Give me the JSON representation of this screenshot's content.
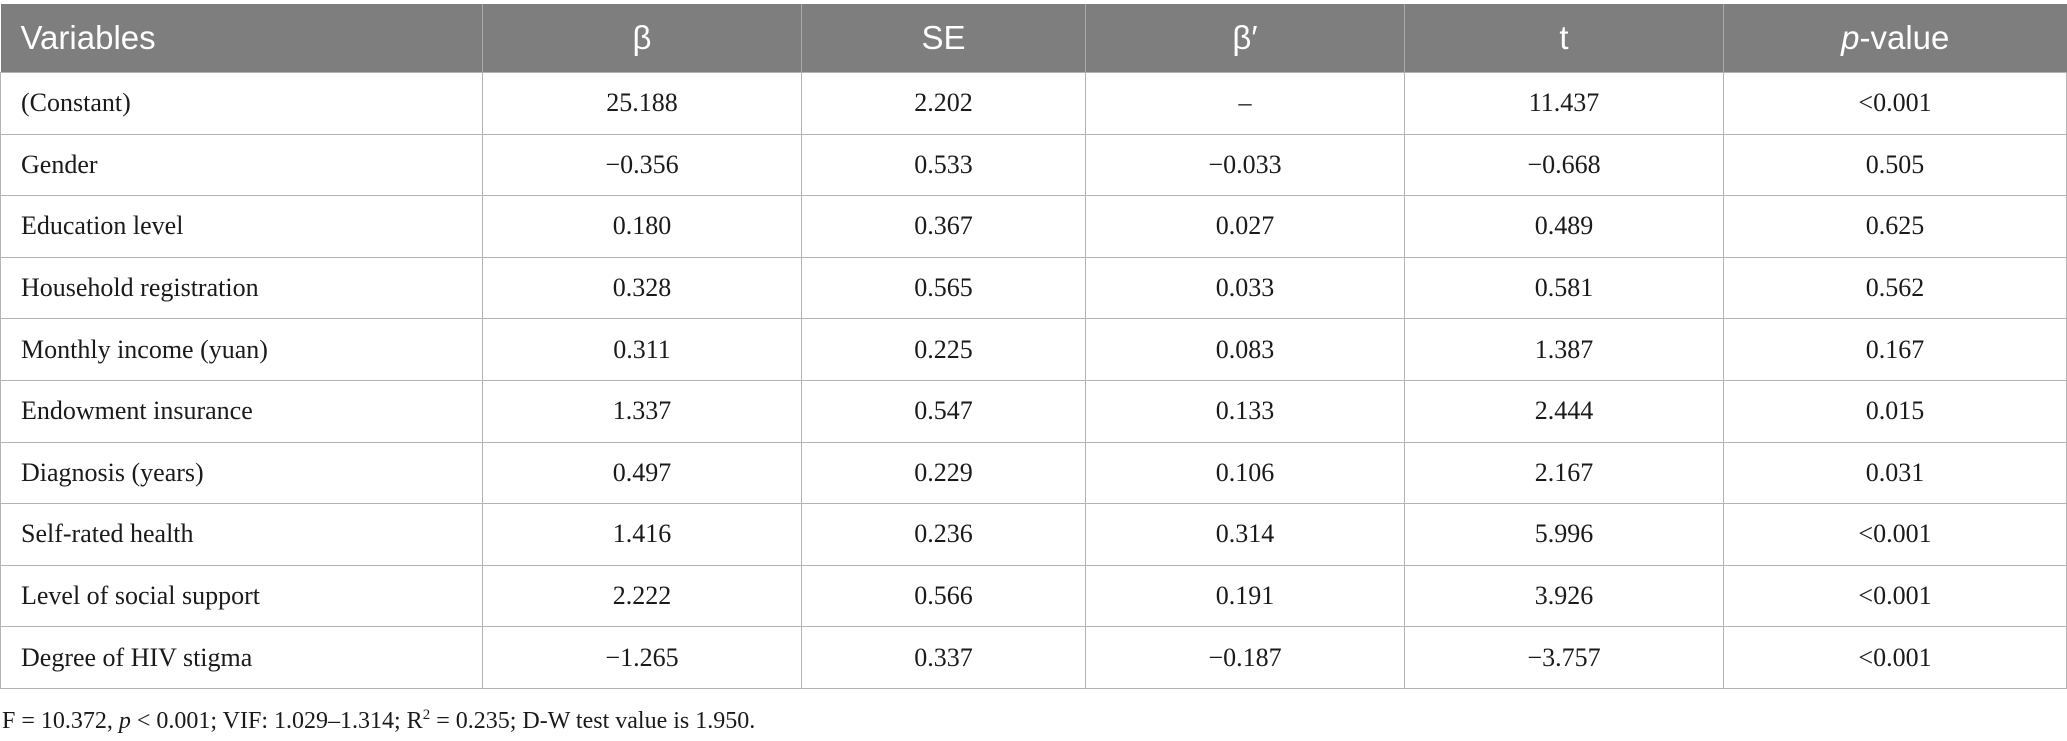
{
  "table": {
    "headers": {
      "variables": "Variables",
      "beta": "β",
      "se": "SE",
      "beta_std": "β′",
      "t": "t",
      "p_italic": "p",
      "p_rest": "-value"
    },
    "rows": [
      {
        "variable": "(Constant)",
        "beta": "25.188",
        "se": "2.202",
        "beta_std": "–",
        "t": "11.437",
        "p": "<0.001"
      },
      {
        "variable": "Gender",
        "beta": "−0.356",
        "se": "0.533",
        "beta_std": "−0.033",
        "t": "−0.668",
        "p": "0.505"
      },
      {
        "variable": "Education level",
        "beta": "0.180",
        "se": "0.367",
        "beta_std": "0.027",
        "t": "0.489",
        "p": "0.625"
      },
      {
        "variable": "Household registration",
        "beta": "0.328",
        "se": "0.565",
        "beta_std": "0.033",
        "t": "0.581",
        "p": "0.562"
      },
      {
        "variable": "Monthly income (yuan)",
        "beta": "0.311",
        "se": "0.225",
        "beta_std": "0.083",
        "t": "1.387",
        "p": "0.167"
      },
      {
        "variable": "Endowment insurance",
        "beta": "1.337",
        "se": "0.547",
        "beta_std": "0.133",
        "t": "2.444",
        "p": "0.015"
      },
      {
        "variable": "Diagnosis (years)",
        "beta": "0.497",
        "se": "0.229",
        "beta_std": "0.106",
        "t": "2.167",
        "p": "0.031"
      },
      {
        "variable": "Self-rated health",
        "beta": "1.416",
        "se": "0.236",
        "beta_std": "0.314",
        "t": "5.996",
        "p": "<0.001"
      },
      {
        "variable": "Level of social support",
        "beta": "2.222",
        "se": "0.566",
        "beta_std": "0.191",
        "t": "3.926",
        "p": "<0.001"
      },
      {
        "variable": "Degree of HIV stigma",
        "beta": "−1.265",
        "se": "0.337",
        "beta_std": "−0.187",
        "t": "−3.757",
        "p": "<0.001"
      }
    ]
  },
  "footnote": {
    "part1": "F = 10.372, ",
    "p_italic": "p",
    "part2": " < 0.001; VIF: 1.029–1.314; R",
    "sup": "2",
    "part3": " = 0.235; D-W test value is 1.950."
  },
  "colors": {
    "header_bg": "#7d7e7d",
    "header_text": "#ffffff",
    "border": "#b3b3b3"
  }
}
